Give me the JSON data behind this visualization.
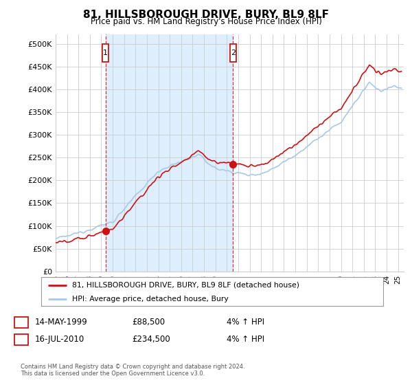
{
  "title": "81, HILLSBOROUGH DRIVE, BURY, BL9 8LF",
  "subtitle": "Price paid vs. HM Land Registry's House Price Index (HPI)",
  "legend_line1": "81, HILLSBOROUGH DRIVE, BURY, BL9 8LF (detached house)",
  "legend_line2": "HPI: Average price, detached house, Bury",
  "footnote1": "Contains HM Land Registry data © Crown copyright and database right 2024.",
  "footnote2": "This data is licensed under the Open Government Licence v3.0.",
  "sale1_date": "14-MAY-1999",
  "sale1_price": "£88,500",
  "sale1_hpi": "4% ↑ HPI",
  "sale2_date": "16-JUL-2010",
  "sale2_price": "£234,500",
  "sale2_hpi": "4% ↑ HPI",
  "hpi_color": "#a8c8e8",
  "price_color": "#cc1111",
  "sale1_year": 1999.37,
  "sale1_value": 88500,
  "sale2_year": 2010.54,
  "sale2_value": 234500,
  "ylabel_ticks": [
    0,
    50000,
    100000,
    150000,
    200000,
    250000,
    300000,
    350000,
    400000,
    450000,
    500000
  ],
  "ylabel_labels": [
    "£0",
    "£50K",
    "£100K",
    "£150K",
    "£200K",
    "£250K",
    "£300K",
    "£350K",
    "£400K",
    "£450K",
    "£500K"
  ],
  "xmin": 1995,
  "xmax": 2025.5,
  "ymin": 0,
  "ymax": 520000,
  "shade_color": "#ddeeff",
  "background_color": "#ffffff",
  "grid_color": "#cccccc"
}
